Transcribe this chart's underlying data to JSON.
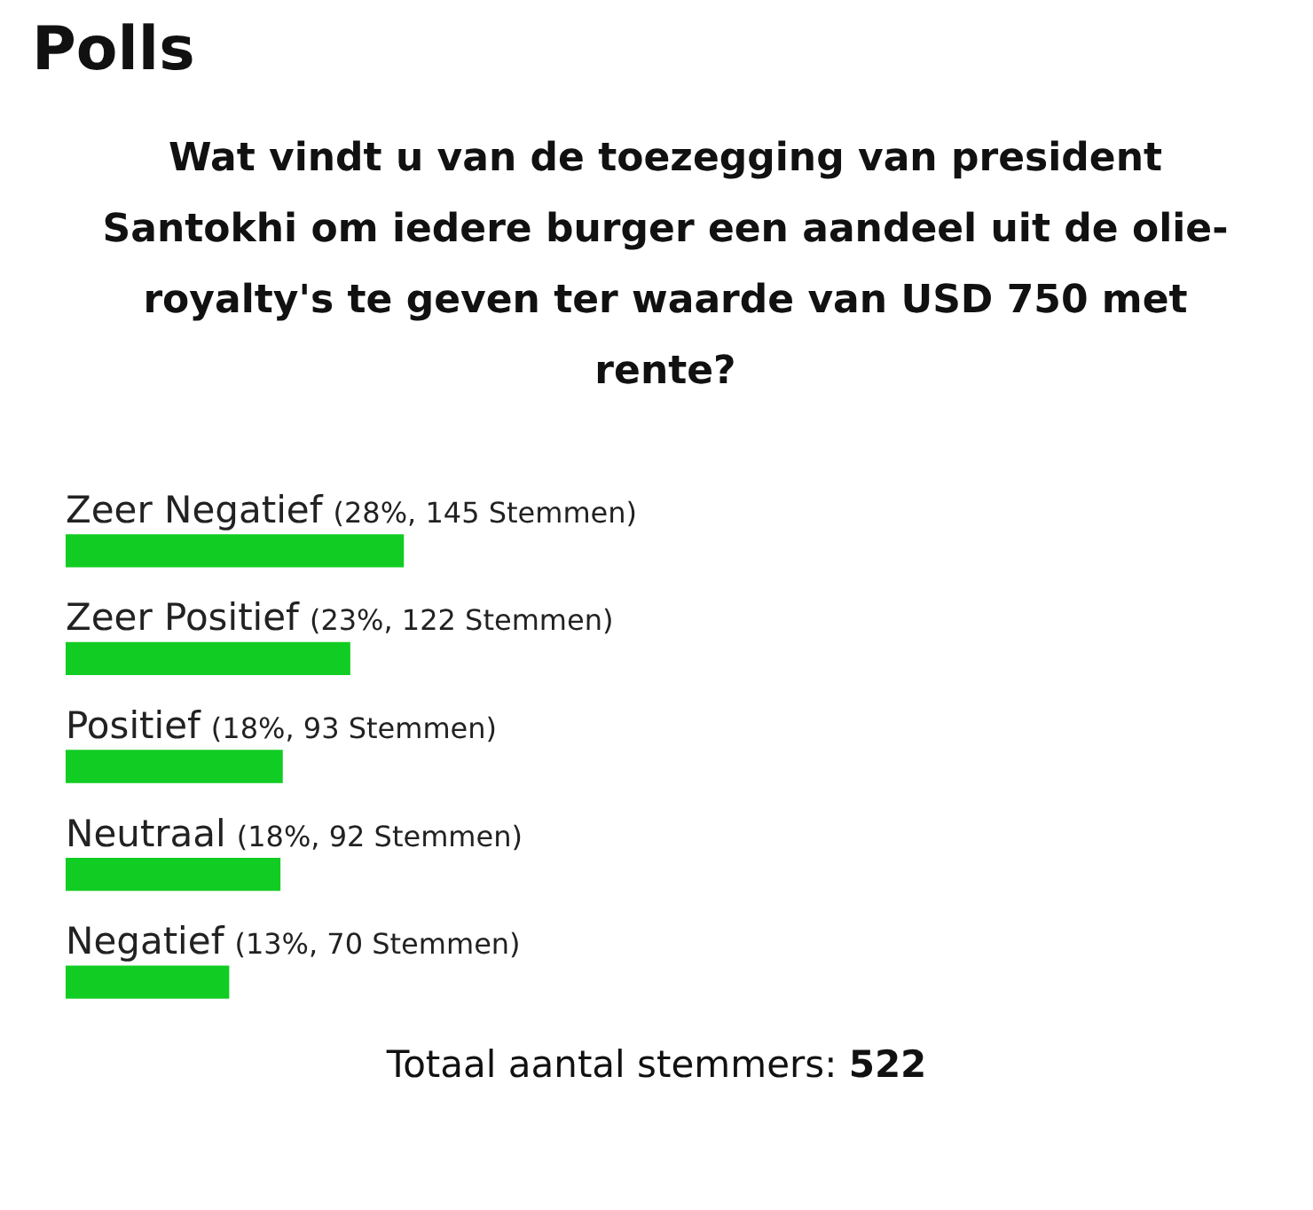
{
  "chart_data": {
    "type": "bar",
    "orientation": "horizontal",
    "title": "Polls",
    "subtitle": "Wat vindt u van de toezegging van president Santokhi om iedere burger een aandeel uit de olie-royalty's te geven ter waarde van USD 750 met rente?",
    "categories": [
      "Zeer Negatief",
      "Zeer Positief",
      "Positief",
      "Neutraal",
      "Negatief"
    ],
    "values": [
      145,
      122,
      93,
      92,
      70
    ],
    "value_labels": [
      "(28%, 145 Stemmen)",
      "(23%, 122 Stemmen)",
      "(18%, 93 Stemmen)",
      "(18%, 92 Stemmen)",
      "(13%, 70 Stemmen)"
    ],
    "color": "#11cc22",
    "annotations": [
      "Totaal aantal stemmers: 522"
    ]
  }
}
